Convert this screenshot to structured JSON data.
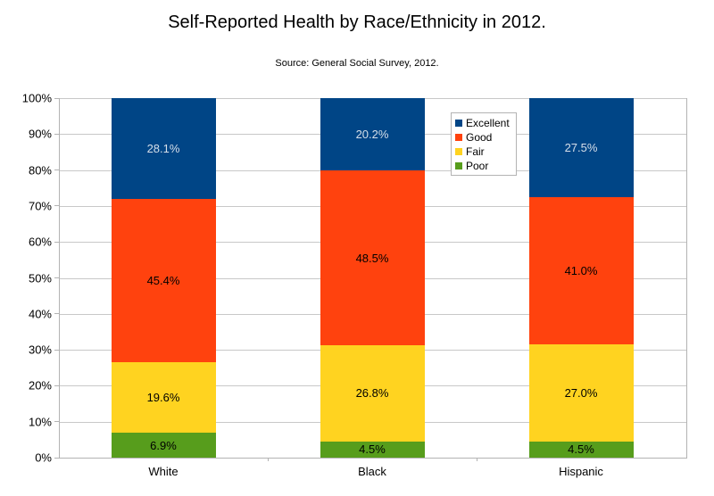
{
  "chart_data": {
    "type": "bar",
    "variant": "stacked-percent",
    "title": "Self-Reported Health by Race/Ethnicity in 2012.",
    "subtitle": "Source: General Social Survey, 2012.",
    "categories": [
      "White",
      "Black",
      "Hispanic"
    ],
    "series": [
      {
        "name": "Excellent",
        "color": "#004586",
        "label_color": "#d6dfe9",
        "values": [
          28.1,
          20.2,
          27.5
        ]
      },
      {
        "name": "Good",
        "color": "#ff420e",
        "label_color": "#000000",
        "values": [
          45.4,
          48.5,
          41.0
        ]
      },
      {
        "name": "Fair",
        "color": "#ffd320",
        "label_color": "#000000",
        "values": [
          19.6,
          26.8,
          27.0
        ]
      },
      {
        "name": "Poor",
        "color": "#579d1c",
        "label_color": "#000000",
        "values": [
          6.9,
          4.5,
          4.5
        ]
      }
    ],
    "stack_order_top_to_bottom": [
      "Excellent",
      "Good",
      "Fair",
      "Poor"
    ],
    "value_label_format": "{value}%",
    "y_ticks": [
      "0%",
      "10%",
      "20%",
      "30%",
      "40%",
      "50%",
      "60%",
      "70%",
      "80%",
      "90%",
      "100%"
    ],
    "ylim": [
      0,
      100
    ],
    "xlabel": "",
    "ylabel": "",
    "grid": "horizontal",
    "legend": {
      "position": "inside-top-right",
      "entries": [
        "Excellent",
        "Good",
        "Fair",
        "Poor"
      ]
    },
    "colors": {
      "gridline": "#c8c8c8",
      "axis": "#b3b3b3",
      "background": "#ffffff",
      "text": "#000000"
    }
  }
}
